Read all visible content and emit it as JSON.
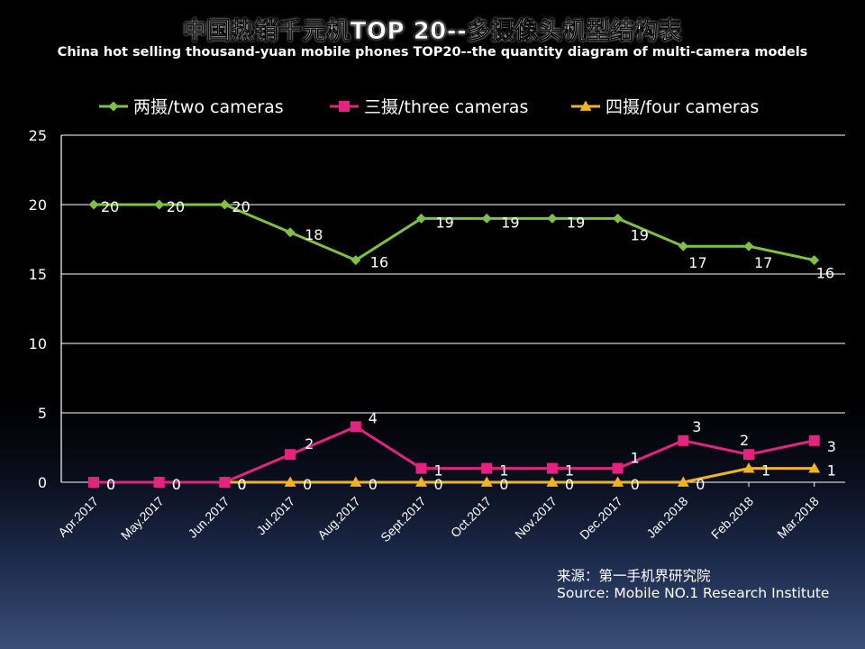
{
  "chart_data": {
    "type": "line",
    "title": "中国热销千元机TOP 20--多摄像头机型结构表",
    "subtitle": "China hot selling thousand-yuan mobile phones TOP20--the quantity diagram of multi-camera models",
    "categories": [
      "Apr.2017",
      "May.2017",
      "Jun.2017",
      "Jul.2017",
      "Aug.2017",
      "Sept.2017",
      "Oct.2017",
      "Nov.2017",
      "Dec.2017",
      "Jan.2018",
      "Feb.2018",
      "Mar.2018"
    ],
    "y_ticks": [
      "0",
      "5",
      "10",
      "15",
      "20",
      "25"
    ],
    "ylim": [
      0,
      25
    ],
    "grid": true,
    "legend_position": "top",
    "series": [
      {
        "name": "两摄/two cameras",
        "color": "#7fc241",
        "marker": "diamond",
        "values": [
          20,
          20,
          20,
          18,
          16,
          19,
          19,
          19,
          19,
          17,
          17,
          16
        ]
      },
      {
        "name": "三摄/three cameras",
        "color": "#e3247e",
        "marker": "square",
        "values": [
          0,
          0,
          0,
          2,
          4,
          1,
          1,
          1,
          1,
          3,
          2,
          3
        ]
      },
      {
        "name": "四摄/four cameras",
        "color": "#f0b323",
        "marker": "triangle",
        "values": [
          0,
          0,
          0,
          0,
          0,
          0,
          0,
          0,
          0,
          0,
          1,
          1
        ]
      }
    ]
  },
  "source": {
    "line1": "来源：第一手机界研究院",
    "line2": "Source: Mobile NO.1 Research Institute"
  }
}
